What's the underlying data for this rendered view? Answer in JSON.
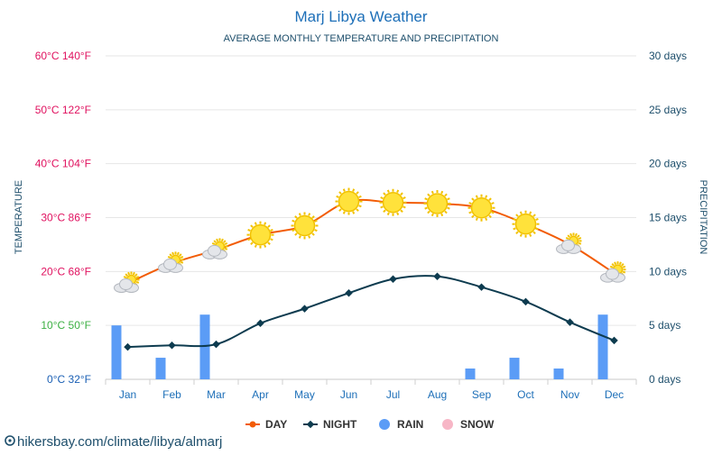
{
  "chart_data": {
    "type": "line",
    "title": "Marj Libya Weather",
    "subtitle": "AVERAGE MONTHLY TEMPERATURE AND PRECIPITATION",
    "categories": [
      "Jan",
      "Feb",
      "Mar",
      "Apr",
      "May",
      "Jun",
      "Jul",
      "Aug",
      "Sep",
      "Oct",
      "Nov",
      "Dec"
    ],
    "series": [
      {
        "name": "DAY",
        "type": "line",
        "axis": "left",
        "color": "#f25c05",
        "unit": "°C",
        "values": [
          17.8,
          21.5,
          24,
          26.8,
          28.5,
          33,
          32.8,
          32.6,
          31.8,
          28.8,
          25,
          19.7
        ]
      },
      {
        "name": "NIGHT",
        "type": "line",
        "axis": "left",
        "color": "#0d3b4f",
        "unit": "°C",
        "values": [
          6,
          6.3,
          6.5,
          10.4,
          13.1,
          16,
          18.6,
          19.1,
          17.1,
          14.4,
          10.6,
          7.2
        ]
      },
      {
        "name": "RAIN",
        "type": "bar",
        "axis": "right",
        "color": "#5b9cf6",
        "unit": "days",
        "values": [
          5,
          2,
          6,
          0,
          0,
          0,
          0,
          0,
          1,
          2,
          1,
          6
        ]
      },
      {
        "name": "SNOW",
        "type": "bar",
        "axis": "right",
        "color": "#f7b6c6",
        "unit": "days",
        "values": [
          0,
          0,
          0,
          0,
          0,
          0,
          0,
          0,
          0,
          0,
          0,
          0
        ]
      }
    ],
    "weather_icons": [
      "partly-cloudy",
      "partly-cloudy",
      "partly-cloudy",
      "sun",
      "sun",
      "sun",
      "sun",
      "sun",
      "sun",
      "sun",
      "partly-cloudy",
      "cloudy-sun"
    ],
    "left_axis": {
      "label": "TEMPERATURE",
      "ylim": [
        0,
        60
      ],
      "ticks": [
        0,
        10,
        20,
        30,
        40,
        50,
        60
      ],
      "tick_labels": [
        "0°C 32°F",
        "10°C 50°F",
        "20°C 68°F",
        "30°C 86°F",
        "40°C 104°F",
        "50°C 122°F",
        "60°C 140°F"
      ],
      "tick_colors": [
        "#1a5fb4",
        "#3cb043",
        "#e0115f",
        "#e0115f",
        "#e0115f",
        "#e0115f",
        "#e0115f"
      ]
    },
    "right_axis": {
      "label": "PRECIPITATION",
      "ylim": [
        0,
        30
      ],
      "ticks": [
        0,
        5,
        10,
        15,
        20,
        25,
        30
      ],
      "tick_labels": [
        "0 days",
        "5 days",
        "10 days",
        "15 days",
        "20 days",
        "25 days",
        "30 days"
      ],
      "color": "#1d4e6b"
    },
    "legend_position": "bottom-center",
    "grid": true
  },
  "source_text": "hikersbay.com/climate/libya/almarj"
}
